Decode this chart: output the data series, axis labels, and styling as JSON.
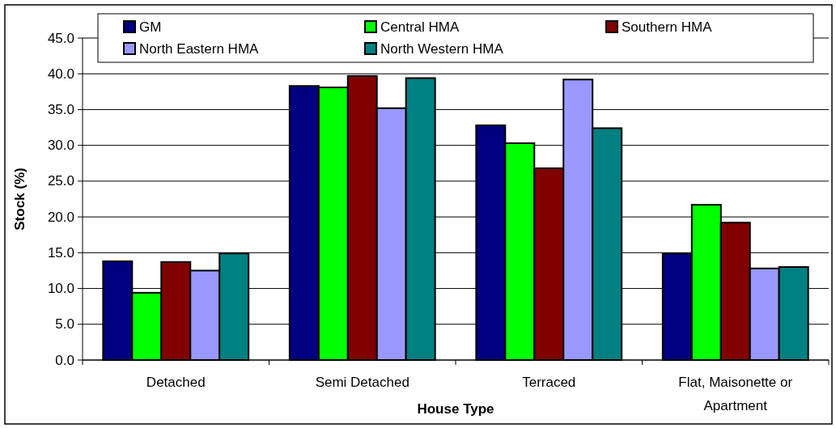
{
  "chart_data": {
    "type": "bar",
    "xlabel": "House Type",
    "ylabel": "Stock (%)",
    "categories": [
      "Detached",
      "Semi Detached",
      "Terraced",
      "Flat, Maisonette or Apartment"
    ],
    "series": [
      {
        "name": "GM",
        "color": "#000080",
        "values": [
          13.8,
          38.3,
          32.8,
          14.9
        ]
      },
      {
        "name": "Central HMA",
        "color": "#00ff00",
        "values": [
          9.4,
          38.1,
          30.3,
          21.7
        ]
      },
      {
        "name": "Southern HMA",
        "color": "#800000",
        "values": [
          13.7,
          39.7,
          26.8,
          19.2
        ]
      },
      {
        "name": "North Eastern HMA",
        "color": "#9999ff",
        "values": [
          12.5,
          35.2,
          39.2,
          12.8
        ]
      },
      {
        "name": "North Western HMA",
        "color": "#008080",
        "values": [
          14.9,
          39.4,
          32.4,
          13.0
        ]
      }
    ],
    "ylim": [
      0,
      45
    ],
    "yticks": [
      {
        "value": 0,
        "label": "0.0"
      },
      {
        "value": 5,
        "label": "5.0"
      },
      {
        "value": 10,
        "label": "10.0"
      },
      {
        "value": 15,
        "label": "15.0"
      },
      {
        "value": 20,
        "label": "20.0"
      },
      {
        "value": 25,
        "label": "25.0"
      },
      {
        "value": 30,
        "label": "30.0"
      },
      {
        "value": 35,
        "label": "35.0"
      },
      {
        "value": 40,
        "label": "40.0"
      },
      {
        "value": 45,
        "label": "45.0"
      }
    ],
    "grid": "y",
    "legend": "top"
  }
}
